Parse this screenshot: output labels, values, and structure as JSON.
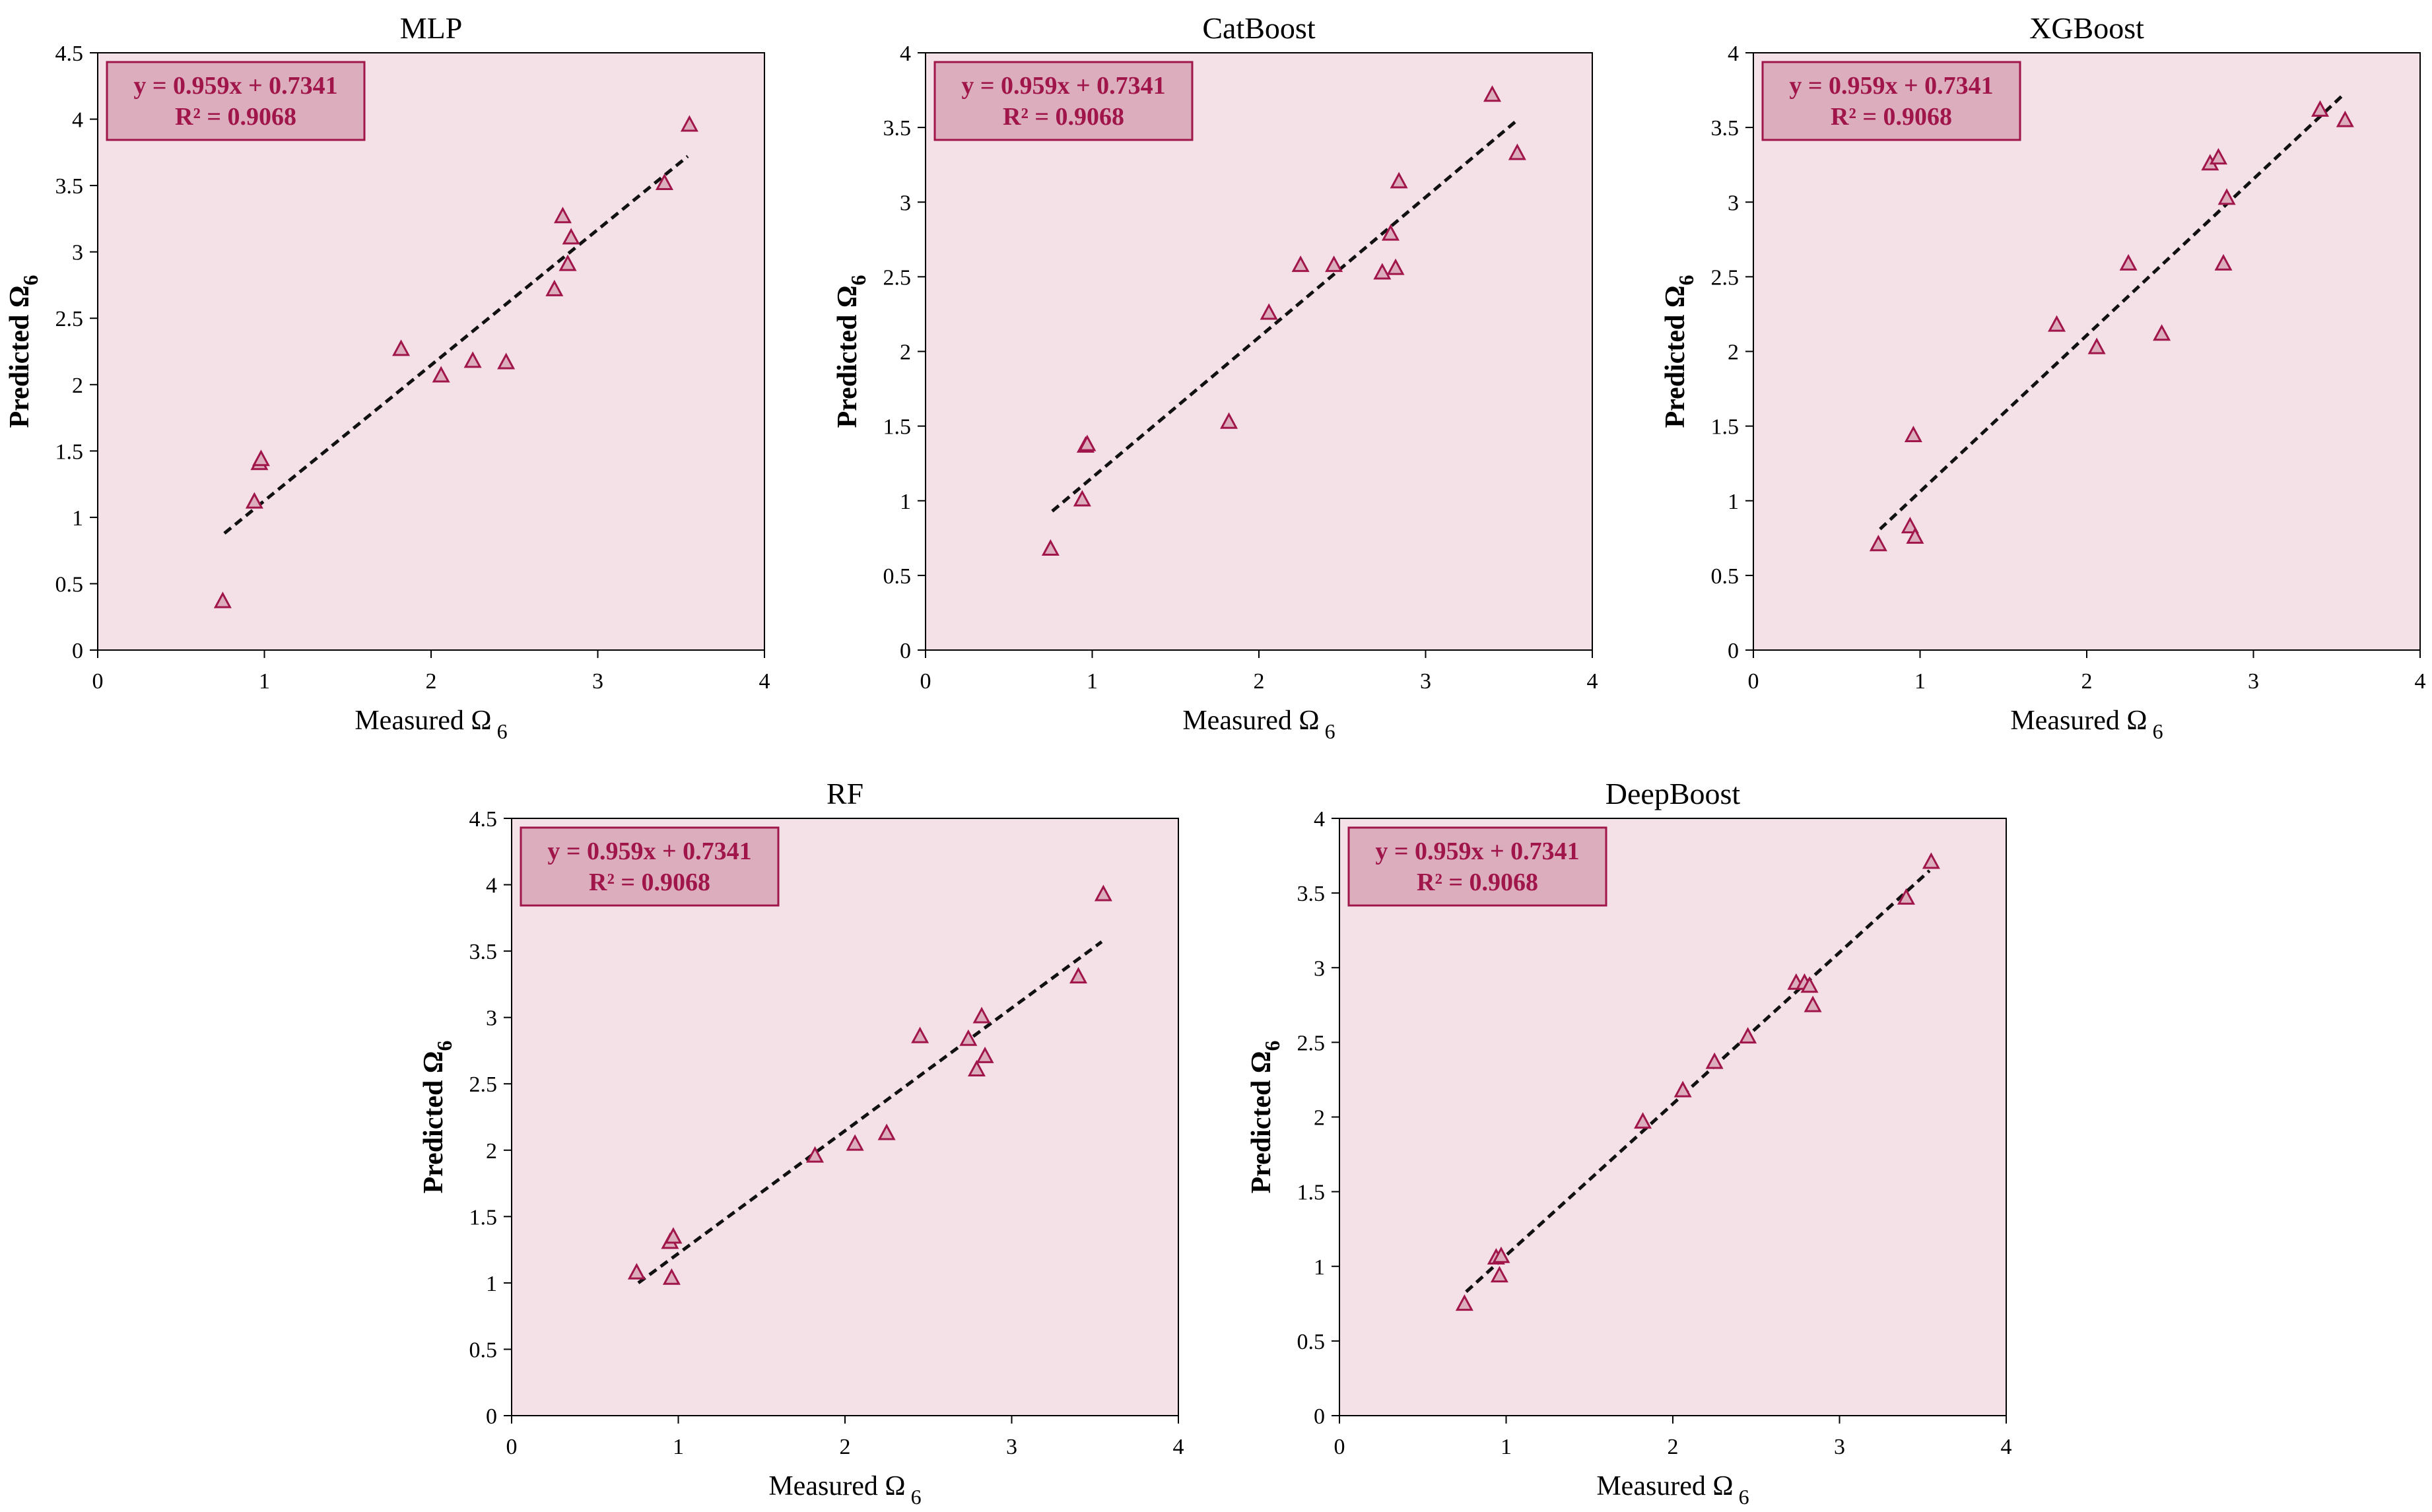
{
  "colors": {
    "plot_bg": "#f4e1e7",
    "box_bg": "#dcaebd",
    "accent": "#a0154a",
    "line": "#111111",
    "axis": "#000000"
  },
  "chart_data": [
    {
      "type": "scatter",
      "title": "MLP",
      "xlabel": "Measured  Ω",
      "xlabel_sub": "6",
      "ylabel": "Predicted Ω",
      "ylabel_sub": "6",
      "xlim": [
        0,
        4
      ],
      "ylim": [
        0,
        4.5
      ],
      "xticks": [
        0,
        1,
        2,
        3,
        4
      ],
      "xtick_labels": [
        "0",
        "1",
        "2",
        "3",
        "4"
      ],
      "yticks": [
        0,
        0.5,
        1,
        1.5,
        2,
        2.5,
        3,
        3.5,
        4,
        4.5
      ],
      "ytick_labels": [
        "0",
        "0.5",
        "1",
        "1.5",
        "2",
        "2.5",
        "3",
        "3.5",
        "4",
        "4.5"
      ],
      "annotation": [
        "y = 0.959x + 0.7341",
        "R² = 0.9068"
      ],
      "trendline": [
        [
          0.76,
          0.88
        ],
        [
          3.54,
          3.72
        ]
      ],
      "x": [
        0.75,
        0.94,
        0.97,
        0.98,
        1.82,
        2.06,
        2.25,
        2.45,
        2.74,
        2.79,
        2.82,
        2.84,
        3.4,
        3.55
      ],
      "y": [
        0.37,
        1.12,
        1.41,
        1.44,
        2.27,
        2.07,
        2.18,
        2.17,
        2.72,
        3.27,
        2.91,
        3.11,
        3.52,
        3.96
      ]
    },
    {
      "type": "scatter",
      "title": "CatBoost",
      "xlabel": "Measured  Ω",
      "xlabel_sub": "6",
      "ylabel": "Predicted Ω",
      "ylabel_sub": "6",
      "xlim": [
        0,
        4
      ],
      "ylim": [
        0,
        4
      ],
      "xticks": [
        0,
        1,
        2,
        3,
        4
      ],
      "xtick_labels": [
        "0",
        "1",
        "2",
        "3",
        "4"
      ],
      "yticks": [
        0,
        0.5,
        1,
        1.5,
        2,
        2.5,
        3,
        3.5,
        4
      ],
      "ytick_labels": [
        "0",
        "0.5",
        "1",
        "1.5",
        "2",
        "2.5",
        "3",
        "3.5",
        "4"
      ],
      "annotation": [
        "y = 0.959x + 0.7341",
        "R² = 0.9068"
      ],
      "trendline": [
        [
          0.76,
          0.93
        ],
        [
          3.54,
          3.54
        ]
      ],
      "x": [
        0.75,
        0.94,
        0.96,
        0.97,
        1.82,
        2.06,
        2.25,
        2.45,
        2.74,
        2.79,
        2.82,
        2.84,
        3.4,
        3.55
      ],
      "y": [
        0.68,
        1.01,
        1.37,
        1.38,
        1.53,
        2.26,
        2.58,
        2.58,
        2.53,
        2.79,
        2.56,
        3.14,
        3.72,
        3.33
      ]
    },
    {
      "type": "scatter",
      "title": "XGBoost",
      "xlabel": "Measured  Ω",
      "xlabel_sub": "6",
      "ylabel": "Predicted Ω",
      "ylabel_sub": "6",
      "xlim": [
        0,
        4
      ],
      "ylim": [
        0,
        4
      ],
      "xticks": [
        0,
        1,
        2,
        3,
        4
      ],
      "xtick_labels": [
        "0",
        "1",
        "2",
        "3",
        "4"
      ],
      "yticks": [
        0,
        0.5,
        1,
        1.5,
        2,
        2.5,
        3,
        3.5,
        4
      ],
      "ytick_labels": [
        "0",
        "0.5",
        "1",
        "1.5",
        "2",
        "2.5",
        "3",
        "3.5",
        "4"
      ],
      "annotation": [
        "y = 0.959x + 0.7341",
        "R² = 0.9068"
      ],
      "trendline": [
        [
          0.76,
          0.81
        ],
        [
          3.54,
          3.72
        ]
      ],
      "x": [
        0.75,
        0.94,
        0.96,
        0.97,
        1.82,
        2.06,
        2.25,
        2.45,
        2.74,
        2.79,
        2.82,
        2.84,
        3.4,
        3.55
      ],
      "y": [
        0.71,
        0.83,
        1.44,
        0.76,
        2.18,
        2.03,
        2.59,
        2.12,
        3.26,
        3.3,
        2.59,
        3.03,
        3.62,
        3.55
      ]
    },
    {
      "type": "scatter",
      "title": "RF",
      "xlabel": "Measured  Ω",
      "xlabel_sub": "6",
      "ylabel": "Predicted Ω",
      "ylabel_sub": "6",
      "xlim": [
        0,
        4
      ],
      "ylim": [
        0,
        4.5
      ],
      "xticks": [
        0,
        1,
        2,
        3,
        4
      ],
      "xtick_labels": [
        "0",
        "1",
        "2",
        "3",
        "4"
      ],
      "yticks": [
        0,
        0.5,
        1,
        1.5,
        2,
        2.5,
        3,
        3.5,
        4,
        4.5
      ],
      "ytick_labels": [
        "0",
        "0.5",
        "1",
        "1.5",
        "2",
        "2.5",
        "3",
        "3.5",
        "4",
        "4.5"
      ],
      "annotation": [
        "y = 0.959x + 0.7341",
        "R² = 0.9068"
      ],
      "trendline": [
        [
          0.76,
          1.0
        ],
        [
          3.54,
          3.57
        ]
      ],
      "x": [
        0.75,
        0.95,
        0.96,
        0.97,
        1.82,
        2.06,
        2.25,
        2.45,
        2.74,
        2.79,
        2.82,
        2.84,
        3.4,
        3.55
      ],
      "y": [
        1.08,
        1.31,
        1.04,
        1.35,
        1.96,
        2.05,
        2.13,
        2.86,
        2.84,
        2.61,
        3.01,
        2.71,
        3.31,
        3.93
      ]
    },
    {
      "type": "scatter",
      "title": "DeepBoost",
      "xlabel": "Measured  Ω",
      "xlabel_sub": "6",
      "ylabel": "Predicted Ω",
      "ylabel_sub": "6",
      "xlim": [
        0,
        4
      ],
      "ylim": [
        0,
        4
      ],
      "xticks": [
        0,
        1,
        2,
        3,
        4
      ],
      "xtick_labels": [
        "0",
        "1",
        "2",
        "3",
        "4"
      ],
      "yticks": [
        0,
        0.5,
        1,
        1.5,
        2,
        2.5,
        3,
        3.5,
        4
      ],
      "ytick_labels": [
        "0",
        "0.5",
        "1",
        "1.5",
        "2",
        "2.5",
        "3",
        "3.5",
        "4"
      ],
      "annotation": [
        "y = 0.959x + 0.7341",
        "R² = 0.9068"
      ],
      "trendline": [
        [
          0.76,
          0.83
        ],
        [
          3.54,
          3.65
        ]
      ],
      "x": [
        0.75,
        0.94,
        0.96,
        0.97,
        1.82,
        2.06,
        2.25,
        2.45,
        2.74,
        2.79,
        2.82,
        2.84,
        3.4,
        3.55
      ],
      "y": [
        0.75,
        1.06,
        0.94,
        1.07,
        1.97,
        2.18,
        2.37,
        2.54,
        2.9,
        2.9,
        2.88,
        2.75,
        3.47,
        3.71
      ]
    }
  ]
}
